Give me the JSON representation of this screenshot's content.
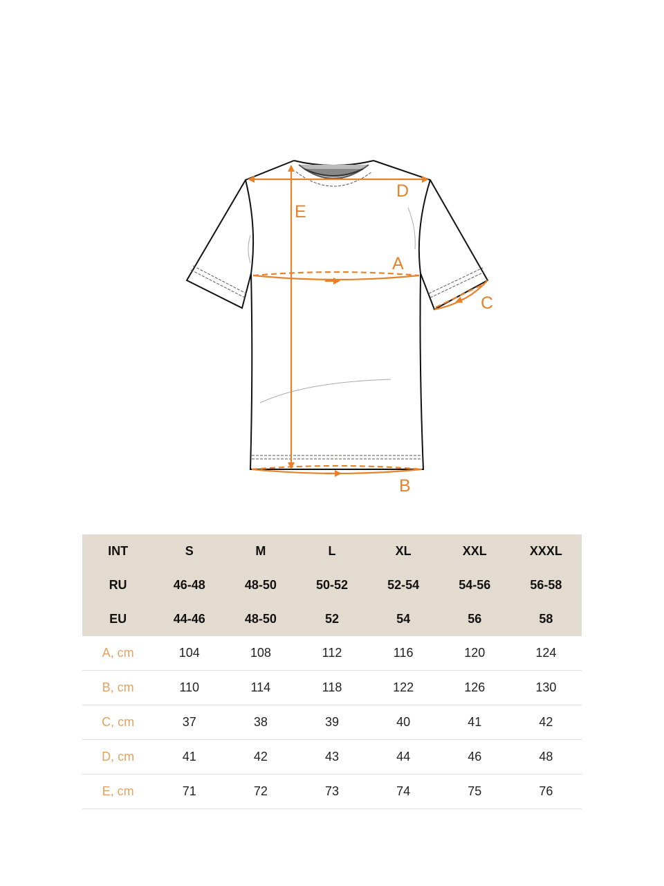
{
  "diagram": {
    "labels": {
      "A": "A",
      "B": "B",
      "C": "C",
      "D": "D",
      "E": "E"
    },
    "accent_color": "#e8822a"
  },
  "table": {
    "header_rows": [
      {
        "label": "INT",
        "values": [
          "S",
          "M",
          "L",
          "XL",
          "XXL",
          "XXXL"
        ]
      },
      {
        "label": "RU",
        "values": [
          "46-48",
          "48-50",
          "50-52",
          "52-54",
          "54-56",
          "56-58"
        ]
      },
      {
        "label": "EU",
        "values": [
          "44-46",
          "48-50",
          "52",
          "54",
          "56",
          "58"
        ]
      }
    ],
    "measure_rows": [
      {
        "label": "A, cm",
        "values": [
          "104",
          "108",
          "112",
          "116",
          "120",
          "124"
        ]
      },
      {
        "label": "B, cm",
        "values": [
          "110",
          "114",
          "118",
          "122",
          "126",
          "130"
        ]
      },
      {
        "label": "C, cm",
        "values": [
          "37",
          "38",
          "39",
          "40",
          "41",
          "42"
        ]
      },
      {
        "label": "D, cm",
        "values": [
          "41",
          "42",
          "43",
          "44",
          "46",
          "48"
        ]
      },
      {
        "label": "E, cm",
        "values": [
          "71",
          "72",
          "73",
          "74",
          "75",
          "76"
        ]
      }
    ],
    "header_bg": "#e3dbcf",
    "label_color": "#e2a262"
  }
}
